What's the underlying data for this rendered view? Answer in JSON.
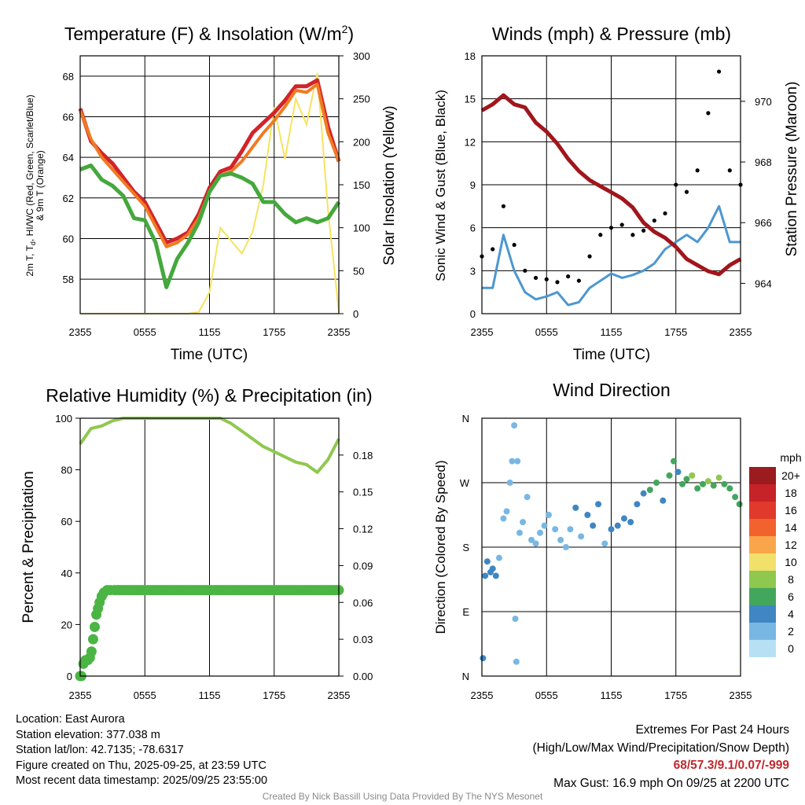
{
  "colors": {
    "temp": "#d2232a",
    "dewpoint": "#44a83c",
    "heat_index": "#f07a22",
    "insolation": "#f6e35f",
    "wind": "#4d97d0",
    "gust": "#000000",
    "pressure": "#a0161c",
    "rh": "#8fc84f",
    "precip": "#4bb543"
  },
  "chart_data": [
    {
      "id": "temperature",
      "type": "line",
      "title": "Temperature (F) & Insolation (W/m2)",
      "title_main": "Temperature (F) & Insolation (W/m",
      "title_sup": "2",
      "title_end": ")",
      "xlabel": "Time (UTC)",
      "ylabel_lines": [
        "2m T, T",
        "d",
        ", HI/WC (Red, Green, Scarlet/Blue)",
        "& 9m T (Orange)"
      ],
      "y2label": "Solar Insolation (Yellow)",
      "x_ticks": [
        "2355",
        "0555",
        "1155",
        "1755",
        "2355"
      ],
      "y_ticks": [
        "58",
        "60",
        "62",
        "64",
        "66",
        "68"
      ],
      "y2_ticks": [
        "0",
        "50",
        "100",
        "150",
        "200",
        "250",
        "300"
      ],
      "ylim": [
        56.3,
        69.0
      ],
      "y2lim": [
        0,
        300
      ],
      "x_hours": [
        0,
        1,
        2,
        3,
        4,
        5,
        6,
        7,
        8,
        9,
        10,
        11,
        12,
        13,
        14,
        15,
        16,
        17,
        18,
        19,
        20,
        21,
        22,
        23,
        24
      ],
      "series": [
        {
          "name": "2m T",
          "values": [
            66.4,
            64.8,
            64.2,
            63.7,
            63.0,
            62.3,
            61.8,
            60.8,
            59.8,
            60.0,
            60.3,
            61.2,
            62.5,
            63.3,
            63.5,
            64.3,
            65.2,
            65.7,
            66.2,
            66.8,
            67.5,
            67.5,
            67.8,
            65.5,
            63.8
          ]
        },
        {
          "name": "9m T",
          "values": [
            66.3,
            64.9,
            64.0,
            63.4,
            62.8,
            62.2,
            61.6,
            60.6,
            59.6,
            59.8,
            60.2,
            61.0,
            62.3,
            63.1,
            63.3,
            63.8,
            64.5,
            65.2,
            65.8,
            66.5,
            67.3,
            67.2,
            67.6,
            65.2,
            63.8
          ]
        },
        {
          "name": "Td",
          "values": [
            63.4,
            63.6,
            62.9,
            62.6,
            62.1,
            61.0,
            60.9,
            59.8,
            57.6,
            59.0,
            59.8,
            60.8,
            62.3,
            63.1,
            63.2,
            63.0,
            62.7,
            61.8,
            61.8,
            61.2,
            60.8,
            61.0,
            60.8,
            61.0,
            61.8
          ]
        }
      ],
      "insolation": [
        0,
        0,
        0,
        0,
        0,
        0,
        0,
        0,
        0,
        0,
        0,
        2,
        25,
        100,
        85,
        70,
        95,
        150,
        240,
        180,
        250,
        220,
        280,
        120,
        2
      ]
    },
    {
      "id": "winds",
      "type": "line",
      "title": "Winds (mph) & Pressure (mb)",
      "xlabel": "Time (UTC)",
      "ylabel": "Sonic Wind & Gust (Blue, Black)",
      "y2label": "Station Pressure (Maroon)",
      "x_ticks": [
        "2355",
        "0555",
        "1155",
        "1755",
        "2355"
      ],
      "y_ticks": [
        "0",
        "3",
        "6",
        "9",
        "12",
        "15",
        "18"
      ],
      "y2_ticks": [
        "964",
        "966",
        "968",
        "970"
      ],
      "ylim": [
        0,
        18
      ],
      "y2lim": [
        963.0,
        971.5
      ],
      "x_hours": [
        0,
        1,
        2,
        3,
        4,
        5,
        6,
        7,
        8,
        9,
        10,
        11,
        12,
        13,
        14,
        15,
        16,
        17,
        18,
        19,
        20,
        21,
        22,
        23,
        24
      ],
      "wind": [
        1.8,
        1.8,
        5.5,
        3.0,
        1.5,
        1.0,
        1.2,
        1.5,
        0.6,
        0.8,
        1.8,
        2.3,
        2.8,
        2.5,
        2.7,
        3.0,
        3.5,
        4.5,
        5.0,
        5.5,
        5.0,
        6.0,
        7.5,
        5.0,
        5.0
      ],
      "gust": [
        4.0,
        4.5,
        7.5,
        4.8,
        3.0,
        2.5,
        2.4,
        2.2,
        2.6,
        2.3,
        4.0,
        5.5,
        6.0,
        6.2,
        5.5,
        5.8,
        6.5,
        7.0,
        9.0,
        8.5,
        10.0,
        14.0,
        16.9,
        10.0,
        9.0
      ],
      "pressure": [
        969.7,
        969.9,
        970.2,
        969.9,
        969.8,
        969.3,
        969.0,
        968.6,
        968.1,
        967.7,
        967.4,
        967.2,
        967.0,
        966.8,
        966.5,
        966.0,
        965.7,
        965.5,
        965.2,
        964.8,
        964.6,
        964.4,
        964.3,
        964.6,
        964.8
      ]
    },
    {
      "id": "humidity",
      "type": "line",
      "title": "Relative Humidity (%) & Precipitation (in)",
      "xlabel": "",
      "ylabel": "Percent & Precipitation",
      "x_ticks": [
        "2355",
        "0555",
        "1155",
        "1755",
        "2355"
      ],
      "y_ticks": [
        "0",
        "20",
        "40",
        "60",
        "80",
        "100"
      ],
      "y2_ticks": [
        "0.00",
        "0.03",
        "0.06",
        "0.09",
        "0.12",
        "0.15",
        "0.18"
      ],
      "ylim": [
        0,
        100
      ],
      "y2lim": [
        0,
        0.21
      ],
      "x_hours": [
        0,
        1,
        2,
        3,
        4,
        5,
        6,
        7,
        8,
        9,
        10,
        11,
        12,
        13,
        14,
        15,
        16,
        17,
        18,
        19,
        20,
        21,
        22,
        23,
        24
      ],
      "rh": [
        90,
        96,
        97,
        99,
        100,
        100,
        100,
        100,
        100,
        100,
        100,
        100,
        100,
        100,
        98,
        95,
        92,
        89,
        87,
        85,
        83,
        82,
        79,
        84,
        92
      ],
      "precip_x": [
        0,
        0.1,
        0.3,
        0.5,
        0.7,
        0.9,
        1.05,
        1.2,
        1.35,
        1.5,
        1.65,
        1.8,
        2.0,
        2.2,
        2.5,
        2.8,
        3.2,
        3.5
      ],
      "precip": [
        0,
        0,
        0.01,
        0.013,
        0.013,
        0.015,
        0.02,
        0.03,
        0.04,
        0.05,
        0.055,
        0.06,
        0.065,
        0.068,
        0.07,
        0.07,
        0.07,
        0.07
      ]
    },
    {
      "id": "direction",
      "type": "scatter",
      "title": "Wind Direction",
      "xlabel": "",
      "ylabel": "Direction (Colored By Speed)",
      "x_ticks": [
        "2355",
        "0555",
        "1155",
        "1755",
        "2355"
      ],
      "y_ticks": [
        "N",
        "E",
        "S",
        "W",
        "N"
      ],
      "ylim": [
        0,
        360
      ],
      "legend_title": "mph",
      "legend_labels": [
        "20+",
        "18",
        "16",
        "14",
        "12",
        "10",
        "8",
        "6",
        "4",
        "2",
        "0"
      ],
      "legend_colors": [
        "#9b1b1e",
        "#c52328",
        "#e03a2c",
        "#f2622c",
        "#f9a64b",
        "#f1e06a",
        "#8fc84f",
        "#43a65d",
        "#3f86c3",
        "#78b7e3",
        "#b8e0f5"
      ],
      "time": [
        0.1,
        0.3,
        0.5,
        0.8,
        1.0,
        1.3,
        1.6,
        2.0,
        2.3,
        2.6,
        2.8,
        3.0,
        3.1,
        3.2,
        3.3,
        3.5,
        3.8,
        4.2,
        4.6,
        5.0,
        5.4,
        5.8,
        6.2,
        6.8,
        7.3,
        7.8,
        8.2,
        8.7,
        9.2,
        9.8,
        10.3,
        10.8,
        11.4,
        12.0,
        12.6,
        13.2,
        13.8,
        14.4,
        15.0,
        15.6,
        16.2,
        16.8,
        17.4,
        17.8,
        18.2,
        18.6,
        19.0,
        19.5,
        20.0,
        20.5,
        21.0,
        21.5,
        22.0,
        22.5,
        23.0,
        23.5,
        23.9
      ],
      "direction": [
        25,
        140,
        160,
        145,
        150,
        140,
        165,
        220,
        230,
        270,
        300,
        350,
        80,
        20,
        300,
        200,
        215,
        250,
        190,
        185,
        200,
        210,
        225,
        205,
        190,
        180,
        205,
        235,
        195,
        225,
        210,
        240,
        185,
        205,
        210,
        220,
        215,
        240,
        255,
        260,
        270,
        245,
        280,
        300,
        285,
        268,
        275,
        280,
        262,
        268,
        272,
        266,
        277,
        268,
        262,
        250,
        240
      ],
      "speed": [
        3,
        4,
        3,
        4,
        3,
        4,
        2,
        1,
        2,
        1,
        1,
        1,
        1,
        1,
        1,
        2,
        1,
        1,
        1,
        1,
        2,
        1,
        1,
        2,
        1,
        1,
        2,
        3,
        2,
        3,
        3,
        3,
        2,
        3,
        4,
        3,
        4,
        4,
        4,
        5,
        5,
        4,
        5,
        5,
        4,
        5,
        6,
        7,
        5,
        6,
        7,
        6,
        7,
        6,
        6,
        5,
        5
      ]
    }
  ],
  "info": {
    "location": "Location: East Aurora",
    "elevation": "Station elevation: 377.038 m",
    "latlon": "Station lat/lon: 42.7135; -78.6317",
    "created": "Figure created on Thu, 2025-09-25, at 23:59 UTC",
    "recent": "Most recent data timestamp: 2025/09/25 23:55:00"
  },
  "extremes": {
    "title": "Extremes For Past 24 Hours",
    "subtitle": "(High/Low/Max Wind/Precipitation/Snow Depth)",
    "values": "68/57.3/9.1/0.07/-999",
    "gust": "Max Gust: 16.9 mph On 09/25 at 2200 UTC"
  },
  "credit": "Created By Nick Bassill Using Data Provided By The NYS Mesonet"
}
